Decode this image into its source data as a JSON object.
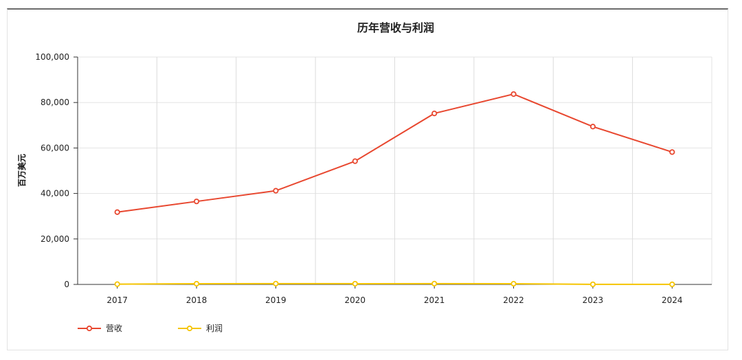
{
  "chart_data": {
    "type": "line",
    "title": "历年营收与利润",
    "ylabel": "百万美元",
    "xlabel": "",
    "x": [
      "2017",
      "2018",
      "2019",
      "2020",
      "2021",
      "2022",
      "2023",
      "2024"
    ],
    "ylim": [
      0,
      100000
    ],
    "yticks": [
      0,
      20000,
      40000,
      60000,
      80000,
      100000
    ],
    "ytick_labels": [
      "0",
      "20,000",
      "40,000",
      "60,000",
      "80,000",
      "100,000"
    ],
    "grid": true,
    "legend_position": "bottom-left",
    "series": [
      {
        "name": "营收",
        "color": "#e8472f",
        "values": [
          31800,
          36500,
          41200,
          54200,
          75200,
          83700,
          69400,
          58200
        ]
      },
      {
        "name": "利润",
        "color": "#f5c400",
        "values": [
          120,
          300,
          350,
          320,
          350,
          310,
          50,
          40
        ]
      }
    ]
  }
}
